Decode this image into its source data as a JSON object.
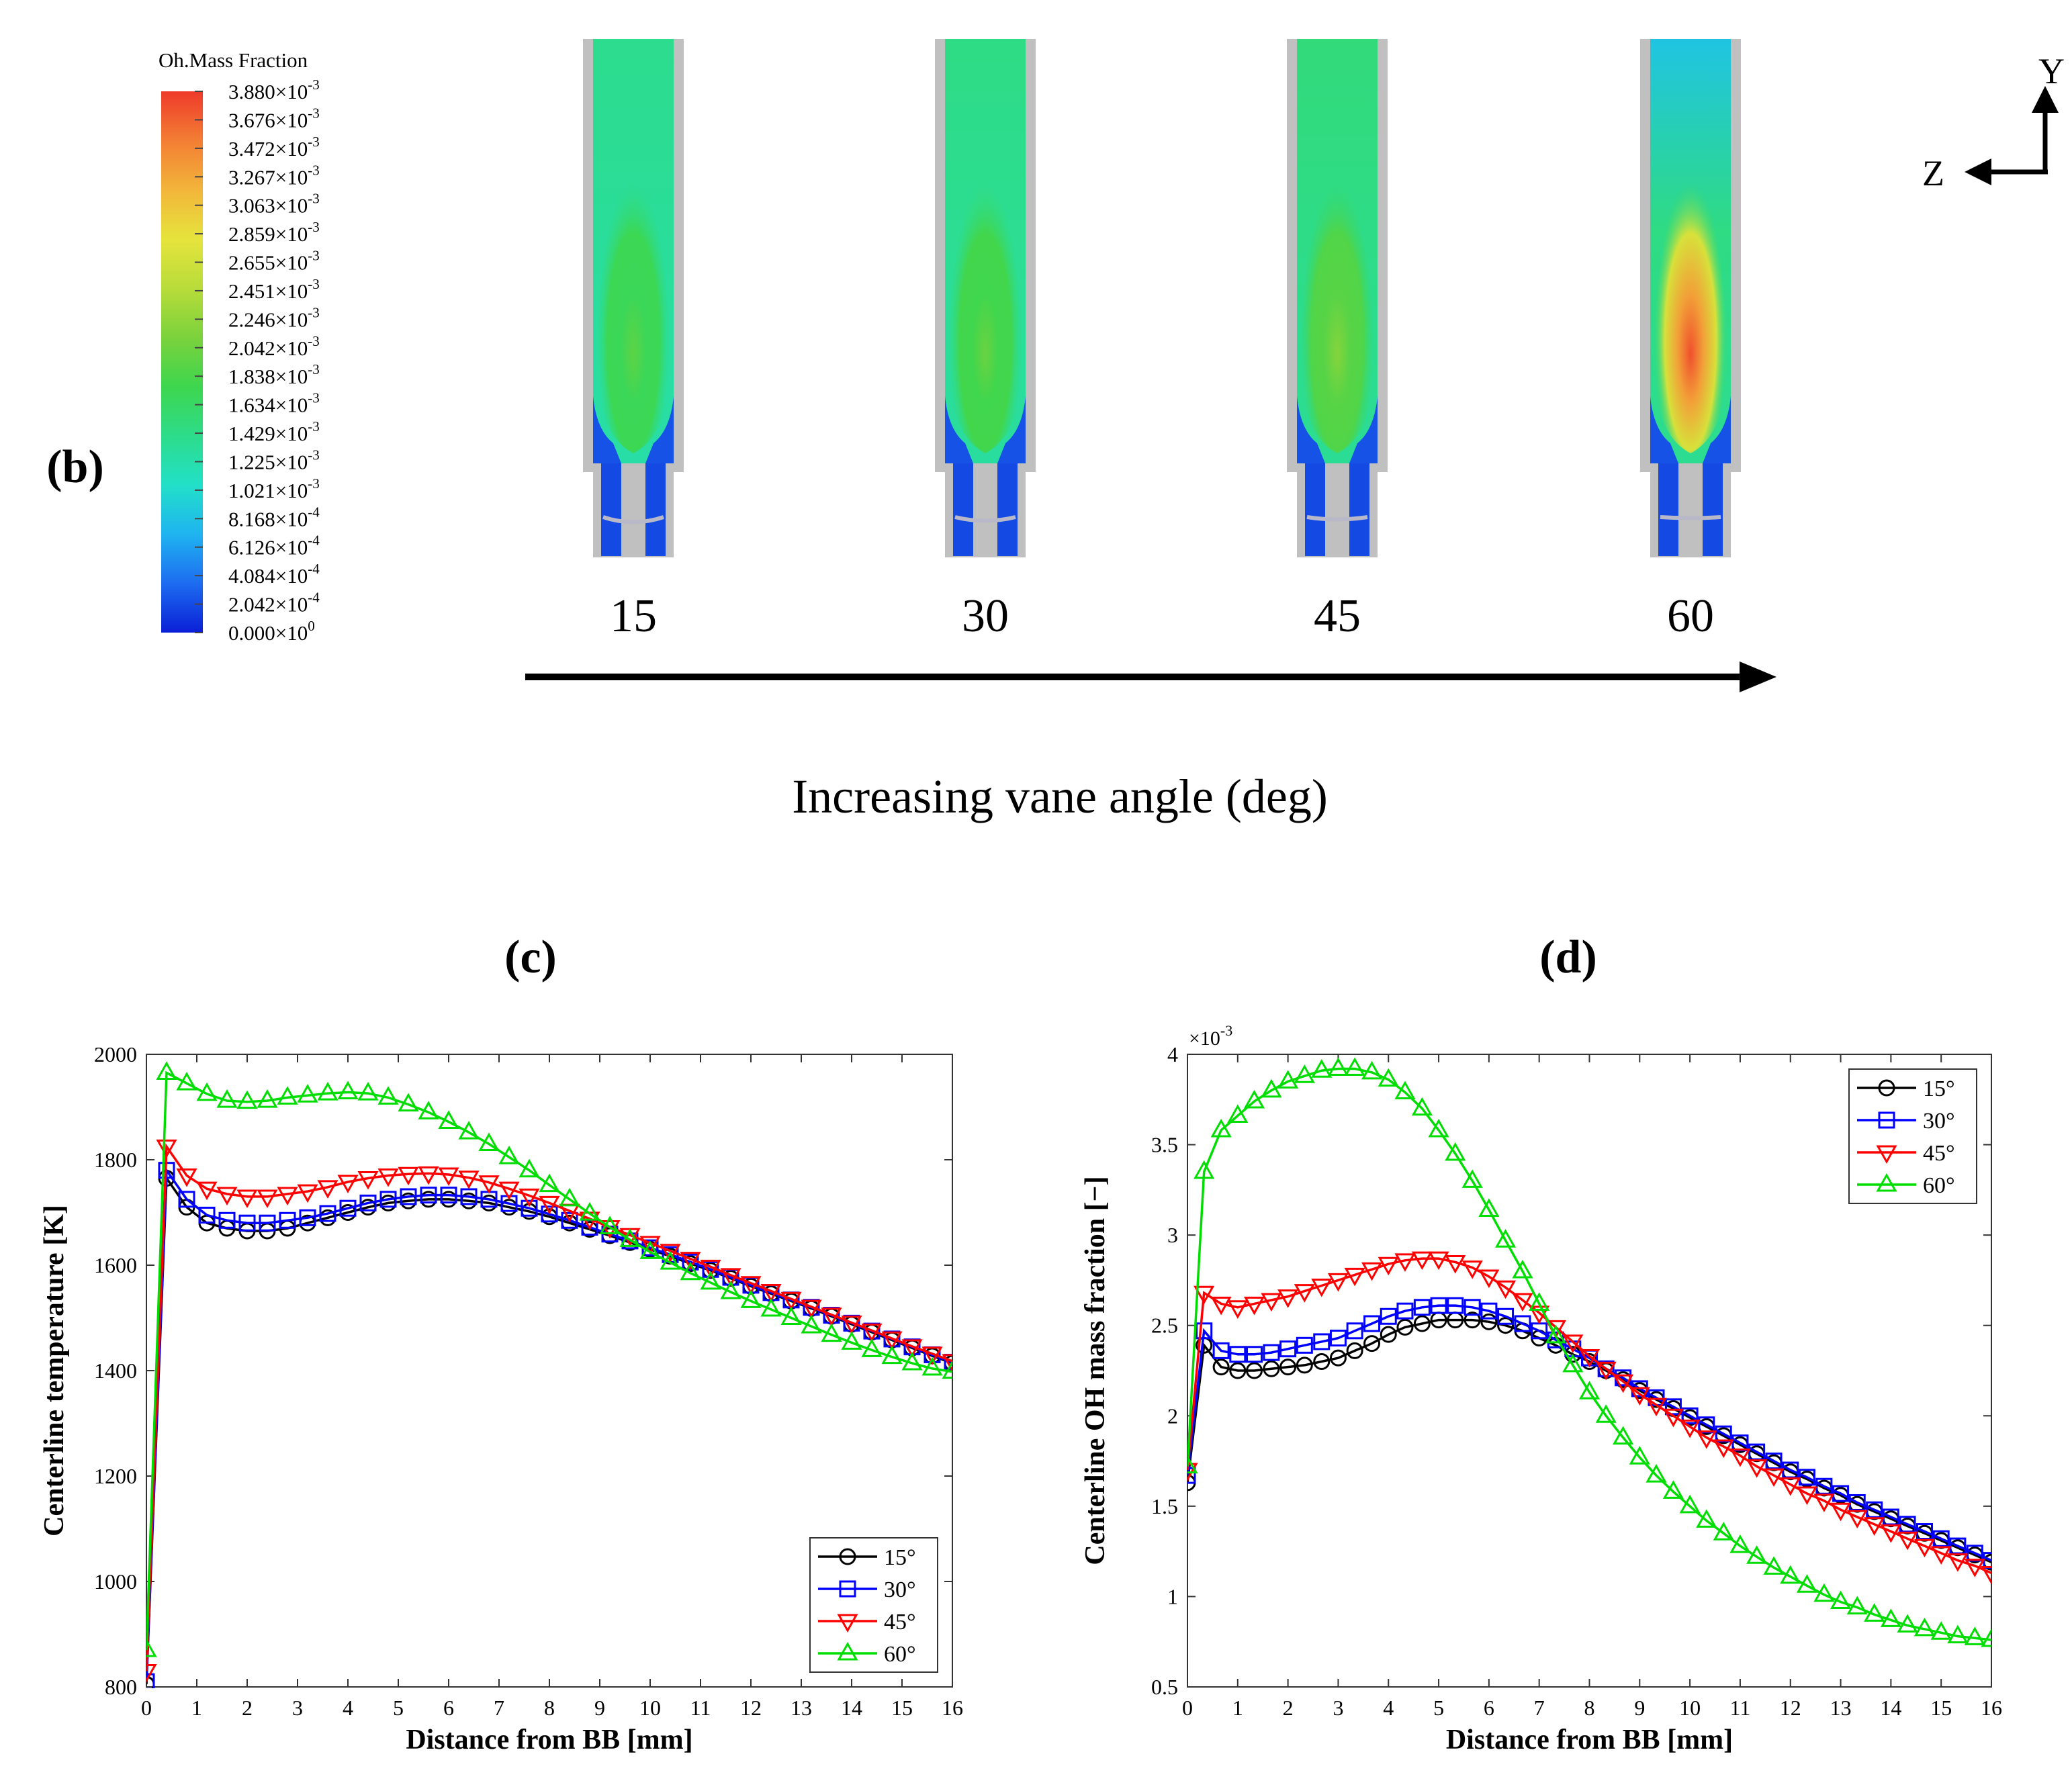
{
  "panel_b": {
    "label": "(b)",
    "colorbar_title": "Oh.Mass Fraction",
    "colorbar_ticks": [
      {
        "m": "3.880",
        "e": "-3"
      },
      {
        "m": "3.676",
        "e": "-3"
      },
      {
        "m": "3.472",
        "e": "-3"
      },
      {
        "m": "3.267",
        "e": "-3"
      },
      {
        "m": "3.063",
        "e": "-3"
      },
      {
        "m": "2.859",
        "e": "-3"
      },
      {
        "m": "2.655",
        "e": "-3"
      },
      {
        "m": "2.451",
        "e": "-3"
      },
      {
        "m": "2.246",
        "e": "-3"
      },
      {
        "m": "2.042",
        "e": "-3"
      },
      {
        "m": "1.838",
        "e": "-3"
      },
      {
        "m": "1.634",
        "e": "-3"
      },
      {
        "m": "1.429",
        "e": "-3"
      },
      {
        "m": "1.225",
        "e": "-3"
      },
      {
        "m": "1.021",
        "e": "-3"
      },
      {
        "m": "8.168",
        "e": "-4"
      },
      {
        "m": "6.126",
        "e": "-4"
      },
      {
        "m": "4.084",
        "e": "-4"
      },
      {
        "m": "2.042",
        "e": "-4"
      },
      {
        "m": "0.000",
        "e": "0"
      }
    ],
    "colormap": [
      "#0a1fd6",
      "#1d6cf0",
      "#1fb4f0",
      "#22e0c8",
      "#2ddc8a",
      "#3ed64e",
      "#7bd23c",
      "#b8dc3a",
      "#e6e43c",
      "#f2b53a",
      "#f37e34",
      "#ee3a2a"
    ],
    "cases": [
      {
        "angle": "15",
        "peak": 0.5,
        "core": 0.62
      },
      {
        "angle": "30",
        "peak": 0.52,
        "core": 0.64
      },
      {
        "angle": "45",
        "peak": 0.56,
        "core": 0.67
      },
      {
        "angle": "60",
        "peak": 0.97,
        "core": 0.68
      }
    ],
    "arrow_label": "Increasing vane angle (deg)",
    "axes_y": "Y",
    "axes_z": "Z",
    "wall_color": "#c0c0c0"
  },
  "chart_data": [
    {
      "type": "line",
      "panel_label": "(c)",
      "title": "",
      "xlabel": "Distance from BB [mm]",
      "ylabel": "Centerline temperature [K]",
      "xlim": [
        0,
        16
      ],
      "ylim": [
        800,
        2000
      ],
      "xticks": [
        0,
        1,
        2,
        3,
        4,
        5,
        6,
        7,
        8,
        9,
        10,
        11,
        12,
        13,
        14,
        15,
        16
      ],
      "yticks": [
        800,
        1000,
        1200,
        1400,
        1600,
        1800,
        2000
      ],
      "exponent_label": "",
      "legend_position": "bottom-right",
      "grid": false,
      "series": [
        {
          "name": "15°",
          "color": "#000000",
          "marker": "circle",
          "x": [
            0,
            0.4,
            0.8,
            1.2,
            1.6,
            2,
            2.4,
            2.8,
            3.2,
            3.6,
            4,
            4.4,
            4.8,
            5.2,
            5.6,
            6,
            6.4,
            6.8,
            7.2,
            7.6,
            8,
            8.4,
            8.8,
            9.2,
            9.6,
            10,
            10.4,
            10.8,
            11.2,
            11.6,
            12,
            12.4,
            12.8,
            13.2,
            13.6,
            14,
            14.4,
            14.8,
            15.2,
            15.6,
            16
          ],
          "y": [
            805,
            1765,
            1710,
            1680,
            1670,
            1665,
            1665,
            1670,
            1680,
            1690,
            1700,
            1710,
            1718,
            1722,
            1725,
            1725,
            1722,
            1718,
            1710,
            1702,
            1692,
            1680,
            1668,
            1656,
            1643,
            1630,
            1617,
            1603,
            1590,
            1575,
            1560,
            1546,
            1532,
            1518,
            1503,
            1488,
            1473,
            1458,
            1443,
            1428,
            1414
          ]
        },
        {
          "name": "30°",
          "color": "#0000ff",
          "marker": "square",
          "x": [
            0,
            0.4,
            0.8,
            1.2,
            1.6,
            2,
            2.4,
            2.8,
            3.2,
            3.6,
            4,
            4.4,
            4.8,
            5.2,
            5.6,
            6,
            6.4,
            6.8,
            7.2,
            7.6,
            8,
            8.4,
            8.8,
            9.2,
            9.6,
            10,
            10.4,
            10.8,
            11.2,
            11.6,
            12,
            12.4,
            12.8,
            13.2,
            13.6,
            14,
            14.4,
            14.8,
            15.2,
            15.6,
            16
          ],
          "y": [
            810,
            1780,
            1725,
            1695,
            1685,
            1680,
            1680,
            1685,
            1690,
            1698,
            1708,
            1718,
            1725,
            1730,
            1733,
            1733,
            1730,
            1725,
            1717,
            1708,
            1697,
            1685,
            1672,
            1659,
            1646,
            1633,
            1620,
            1606,
            1592,
            1577,
            1562,
            1548,
            1534,
            1520,
            1505,
            1490,
            1475,
            1460,
            1445,
            1430,
            1416
          ]
        },
        {
          "name": "45°",
          "color": "#ff0000",
          "marker": "triangle-down",
          "x": [
            0,
            0.4,
            0.8,
            1.2,
            1.6,
            2,
            2.4,
            2.8,
            3.2,
            3.6,
            4,
            4.4,
            4.8,
            5.2,
            5.6,
            6,
            6.4,
            6.8,
            7.2,
            7.6,
            8,
            8.4,
            8.8,
            9.2,
            9.6,
            10,
            10.4,
            10.8,
            11.2,
            11.6,
            12,
            12.4,
            12.8,
            13.2,
            13.6,
            14,
            14.4,
            14.8,
            15.2,
            15.6,
            16
          ],
          "y": [
            830,
            1825,
            1770,
            1745,
            1735,
            1730,
            1730,
            1735,
            1740,
            1748,
            1758,
            1765,
            1770,
            1773,
            1774,
            1772,
            1766,
            1757,
            1745,
            1732,
            1718,
            1703,
            1688,
            1672,
            1657,
            1642,
            1627,
            1612,
            1597,
            1581,
            1566,
            1551,
            1536,
            1521,
            1506,
            1491,
            1476,
            1461,
            1446,
            1432,
            1418
          ]
        },
        {
          "name": "60°",
          "color": "#00dd00",
          "marker": "triangle-up",
          "x": [
            0,
            0.4,
            0.8,
            1.2,
            1.6,
            2,
            2.4,
            2.8,
            3.2,
            3.6,
            4,
            4.4,
            4.8,
            5.2,
            5.6,
            6,
            6.4,
            6.8,
            7.2,
            7.6,
            8,
            8.4,
            8.8,
            9.2,
            9.6,
            10,
            10.4,
            10.8,
            11.2,
            11.6,
            12,
            12.4,
            12.8,
            13.2,
            13.6,
            14,
            14.4,
            14.8,
            15.2,
            15.6,
            16
          ],
          "y": [
            870,
            1965,
            1945,
            1925,
            1912,
            1910,
            1912,
            1918,
            1922,
            1926,
            1928,
            1926,
            1918,
            1905,
            1890,
            1872,
            1852,
            1830,
            1805,
            1780,
            1752,
            1725,
            1698,
            1672,
            1648,
            1625,
            1605,
            1585,
            1567,
            1549,
            1532,
            1516,
            1500,
            1484,
            1468,
            1453,
            1439,
            1426,
            1414,
            1404,
            1398
          ]
        }
      ]
    },
    {
      "type": "line",
      "panel_label": "(d)",
      "title": "",
      "xlabel": "Distance from BB [mm]",
      "ylabel": "Centerline OH mass fraction [−]",
      "xlim": [
        0,
        16
      ],
      "ylim": [
        0.5,
        4
      ],
      "xticks": [
        0,
        1,
        2,
        3,
        4,
        5,
        6,
        7,
        8,
        9,
        10,
        11,
        12,
        13,
        14,
        15,
        16
      ],
      "yticks": [
        0.5,
        1,
        1.5,
        2,
        2.5,
        3,
        3.5,
        4
      ],
      "exponent_label": "×10",
      "exponent_power": "-3",
      "legend_position": "top-right",
      "grid": false,
      "series": [
        {
          "name": "15°",
          "color": "#000000",
          "marker": "circle",
          "x": [
            0,
            0.33,
            0.67,
            1,
            1.33,
            1.67,
            2,
            2.33,
            2.67,
            3,
            3.33,
            3.67,
            4,
            4.33,
            4.67,
            5,
            5.33,
            5.67,
            6,
            6.33,
            6.67,
            7,
            7.33,
            7.67,
            8,
            8.33,
            8.67,
            9,
            9.33,
            9.67,
            10,
            10.33,
            10.67,
            11,
            11.33,
            11.67,
            12,
            12.33,
            12.67,
            13,
            13.33,
            13.67,
            14,
            14.33,
            14.67,
            15,
            15.33,
            15.67,
            16
          ],
          "y": [
            1.63,
            2.39,
            2.27,
            2.25,
            2.25,
            2.26,
            2.27,
            2.28,
            2.3,
            2.32,
            2.36,
            2.4,
            2.45,
            2.49,
            2.51,
            2.53,
            2.53,
            2.53,
            2.52,
            2.5,
            2.47,
            2.43,
            2.39,
            2.34,
            2.3,
            2.25,
            2.2,
            2.14,
            2.09,
            2.04,
            1.99,
            1.94,
            1.89,
            1.84,
            1.79,
            1.74,
            1.69,
            1.65,
            1.6,
            1.56,
            1.51,
            1.47,
            1.43,
            1.39,
            1.35,
            1.31,
            1.27,
            1.23,
            1.19
          ]
        },
        {
          "name": "30°",
          "color": "#0000ff",
          "marker": "square",
          "x": [
            0,
            0.33,
            0.67,
            1,
            1.33,
            1.67,
            2,
            2.33,
            2.67,
            3,
            3.33,
            3.67,
            4,
            4.33,
            4.67,
            5,
            5.33,
            5.67,
            6,
            6.33,
            6.67,
            7,
            7.33,
            7.67,
            8,
            8.33,
            8.67,
            9,
            9.33,
            9.67,
            10,
            10.33,
            10.67,
            11,
            11.33,
            11.67,
            12,
            12.33,
            12.67,
            13,
            13.33,
            13.67,
            14,
            14.33,
            14.67,
            15,
            15.33,
            15.67,
            16
          ],
          "y": [
            1.67,
            2.47,
            2.36,
            2.34,
            2.34,
            2.35,
            2.37,
            2.39,
            2.41,
            2.43,
            2.47,
            2.51,
            2.55,
            2.58,
            2.6,
            2.61,
            2.61,
            2.6,
            2.58,
            2.55,
            2.51,
            2.47,
            2.42,
            2.37,
            2.32,
            2.26,
            2.21,
            2.15,
            2.1,
            2.05,
            2.0,
            1.95,
            1.9,
            1.85,
            1.8,
            1.75,
            1.7,
            1.66,
            1.61,
            1.57,
            1.52,
            1.48,
            1.44,
            1.4,
            1.36,
            1.32,
            1.28,
            1.24,
            1.2
          ]
        },
        {
          "name": "45°",
          "color": "#ff0000",
          "marker": "triangle-down",
          "x": [
            0,
            0.33,
            0.67,
            1,
            1.33,
            1.67,
            2,
            2.33,
            2.67,
            3,
            3.33,
            3.67,
            4,
            4.33,
            4.67,
            5,
            5.33,
            5.67,
            6,
            6.33,
            6.67,
            7,
            7.33,
            7.67,
            8,
            8.33,
            8.67,
            9,
            9.33,
            9.67,
            10,
            10.33,
            10.67,
            11,
            11.33,
            11.67,
            12,
            12.33,
            12.67,
            13,
            13.33,
            13.67,
            14,
            14.33,
            14.67,
            15,
            15.33,
            15.67,
            16
          ],
          "y": [
            1.7,
            2.68,
            2.62,
            2.6,
            2.62,
            2.64,
            2.66,
            2.69,
            2.72,
            2.75,
            2.78,
            2.81,
            2.84,
            2.86,
            2.87,
            2.87,
            2.85,
            2.82,
            2.77,
            2.71,
            2.64,
            2.57,
            2.49,
            2.41,
            2.33,
            2.26,
            2.19,
            2.12,
            2.06,
            2.0,
            1.94,
            1.88,
            1.83,
            1.78,
            1.72,
            1.67,
            1.62,
            1.57,
            1.53,
            1.48,
            1.44,
            1.4,
            1.36,
            1.32,
            1.28,
            1.24,
            1.2,
            1.17,
            1.13
          ]
        },
        {
          "name": "60°",
          "color": "#00dd00",
          "marker": "triangle-up",
          "x": [
            0,
            0.33,
            0.67,
            1,
            1.33,
            1.67,
            2,
            2.33,
            2.67,
            3,
            3.33,
            3.67,
            4,
            4.33,
            4.67,
            5,
            5.33,
            5.67,
            6,
            6.33,
            6.67,
            7,
            7.33,
            7.67,
            8,
            8.33,
            8.67,
            9,
            9.33,
            9.67,
            10,
            10.33,
            10.67,
            11,
            11.33,
            11.67,
            12,
            12.33,
            12.67,
            13,
            13.33,
            13.67,
            14,
            14.33,
            14.67,
            15,
            15.33,
            15.67,
            16
          ],
          "y": [
            1.72,
            3.35,
            3.58,
            3.66,
            3.74,
            3.8,
            3.85,
            3.88,
            3.91,
            3.92,
            3.92,
            3.9,
            3.86,
            3.79,
            3.7,
            3.58,
            3.45,
            3.3,
            3.14,
            2.97,
            2.8,
            2.62,
            2.44,
            2.28,
            2.13,
            2.0,
            1.88,
            1.77,
            1.67,
            1.58,
            1.5,
            1.42,
            1.35,
            1.28,
            1.22,
            1.16,
            1.11,
            1.06,
            1.01,
            0.97,
            0.94,
            0.9,
            0.87,
            0.84,
            0.82,
            0.8,
            0.78,
            0.77,
            0.76
          ]
        }
      ]
    }
  ]
}
